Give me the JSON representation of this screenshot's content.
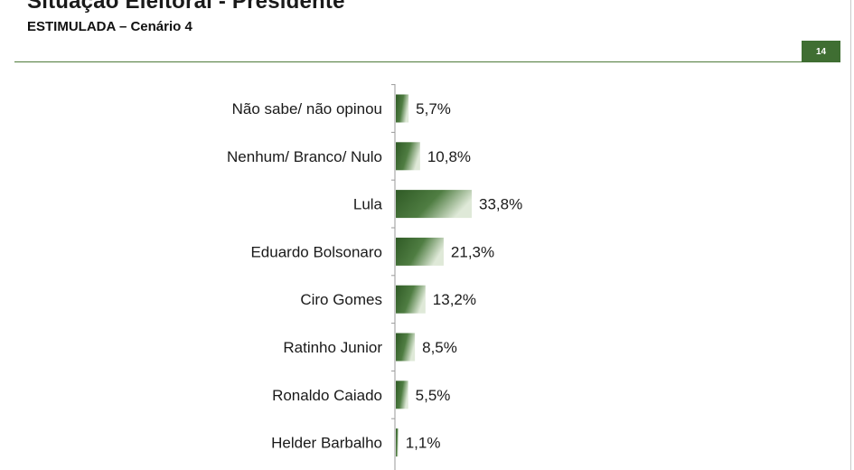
{
  "header": {
    "title": "Situação Eleitoral - Presidente",
    "subtitle": "ESTIMULADA – Cenário 4",
    "page_number": "14"
  },
  "colors": {
    "accent": "#3f6e32",
    "bar_dark": "#2f5a25",
    "bar_light": "#dfe9d8"
  },
  "chart_data": {
    "type": "bar",
    "orientation": "horizontal",
    "categories": [
      "Não sabe/ não opinou",
      "Nenhum/ Branco/ Nulo",
      "Lula",
      "Eduardo Bolsonaro",
      "Ciro Gomes",
      "Ratinho Junior",
      "Ronaldo Caiado",
      "Helder Barbalho"
    ],
    "values": [
      5.7,
      10.8,
      33.8,
      21.3,
      13.2,
      8.5,
      5.5,
      1.1
    ],
    "value_labels": [
      "5,7%",
      "10,8%",
      "33,8%",
      "21,3%",
      "13,2%",
      "8,5%",
      "5,5%",
      "1,1%"
    ],
    "xlim": [
      0,
      40
    ],
    "grid": false,
    "legend": "none"
  }
}
